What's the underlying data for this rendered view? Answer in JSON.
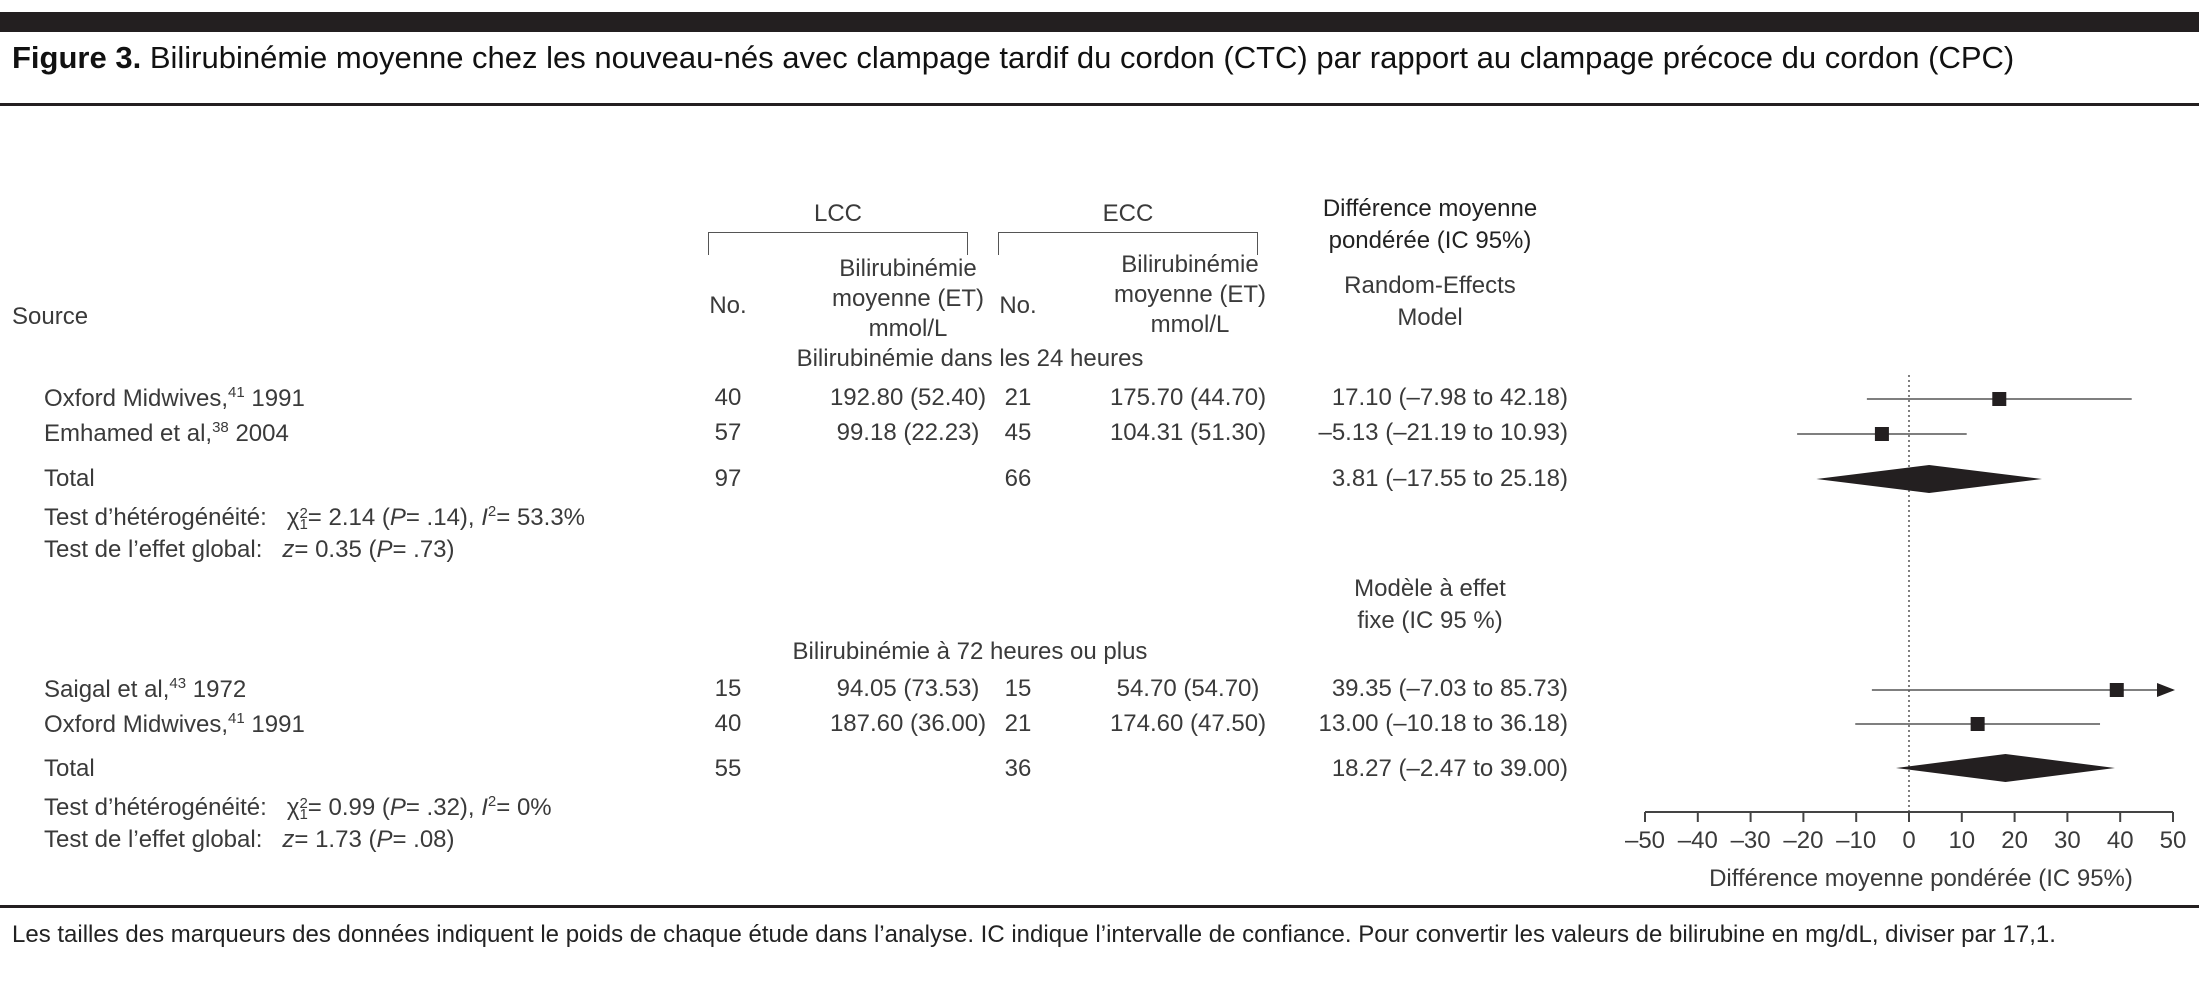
{
  "figure": {
    "label": "Figure 3.",
    "title": "Bilirubinémie moyenne chez les nouveau-nés avec clampage tardif du cordon (CTC) par rapport au clampage précoce du cordon (CPC)",
    "footnote": "Les tailles des marqueurs des données indiquent le poids de chaque étude dans l’analyse. IC indique l’intervalle de confiance. Pour convertir les valeurs de bilirubine en mg/dL, diviser par 17,1."
  },
  "header": {
    "source": "Source",
    "lcc": "LCC",
    "ecc": "ECC",
    "no": "No.",
    "mean_l1": "Bilirubinémie",
    "mean_l2": "moyenne (ET)",
    "mean_l3": "mmol/L",
    "diff_l1": "Différence moyenne",
    "diff_l2": "pondérée (IC 95%)",
    "model1_l1": "Random-Effects",
    "model1_l2": "Model",
    "model2_l1": "Modèle à effet",
    "model2_l2": "fixe (IC 95 %)"
  },
  "groups": [
    {
      "title": "Bilirubinémie dans les 24 heures",
      "studies": [
        {
          "name": "Oxford Midwives,",
          "ref": "41",
          "year": " 1991",
          "lcc_n": "40",
          "lcc_mean": "192.80 (52.40)",
          "ecc_n": "21",
          "ecc_mean": "175.70 (44.70)",
          "ci": "17.10 (–7.98 to 42.18)"
        },
        {
          "name": "Emhamed et al,",
          "ref": "38",
          "year": " 2004",
          "lcc_n": "57",
          "lcc_mean": "99.18 (22.23)",
          "ecc_n": "45",
          "ecc_mean": "104.31 (51.30)",
          "ci": "–5.13 (–21.19 to 10.93)"
        }
      ],
      "total": {
        "label": "Total",
        "lcc_n": "97",
        "ecc_n": "66",
        "ci": "3.81 (–17.55 to 25.18)"
      },
      "heterogeneity": {
        "label": "Test d’hétérogénéité:",
        "chi_sym": "χ",
        "chi_sup": "2",
        "chi_sub": "1",
        "chi_val": "= 2.14 (",
        "p_sym": "P",
        "p_val": "= .14), ",
        "i_sym": "I",
        "i_sup": "2",
        "i_val": "= 53.3%"
      },
      "overall": {
        "label": "Test de l’effet global:",
        "z_sym": "z",
        "z_val": "= 0.35 (",
        "p_sym": "P",
        "p_val": "= .73)"
      }
    },
    {
      "title": "Bilirubinémie à 72 heures ou plus",
      "studies": [
        {
          "name": "Saigal et al,",
          "ref": "43",
          "year": " 1972",
          "lcc_n": "15",
          "lcc_mean": "94.05 (73.53)",
          "ecc_n": "15",
          "ecc_mean": "54.70 (54.70)",
          "ci": "39.35 (–7.03 to 85.73)"
        },
        {
          "name": "Oxford Midwives,",
          "ref": "41",
          "year": " 1991",
          "lcc_n": "40",
          "lcc_mean": "187.60 (36.00)",
          "ecc_n": "21",
          "ecc_mean": "174.60 (47.50)",
          "ci": "13.00 (–10.18 to 36.18)"
        }
      ],
      "total": {
        "label": "Total",
        "lcc_n": "55",
        "ecc_n": "36",
        "ci": "18.27 (–2.47 to 39.00)"
      },
      "heterogeneity": {
        "label": "Test d’hétérogénéité:",
        "chi_sym": "χ",
        "chi_sup": "2",
        "chi_sub": "1",
        "chi_val": "= 0.99 (",
        "p_sym": "P",
        "p_val": "= .32), ",
        "i_sym": "I",
        "i_sup": "2",
        "i_val": "= 0%"
      },
      "overall": {
        "label": "Test de l’effet global:",
        "z_sym": "z",
        "z_val": "= 1.73 (",
        "p_sym": "P",
        "p_val": "= .08)"
      }
    }
  ],
  "chart_data": {
    "type": "forest",
    "xlabel": "Différence moyenne pondérée (IC 95%)",
    "xlim": [
      -50,
      50
    ],
    "ticks": [
      -50,
      -40,
      -30,
      -20,
      -10,
      0,
      10,
      20,
      30,
      40,
      50
    ],
    "tick_labels": [
      "–50",
      "–40",
      "–30",
      "–20",
      "–10",
      "0",
      "10",
      "20",
      "30",
      "40",
      "50"
    ],
    "reference_line": 0,
    "rows": [
      {
        "label": "Oxford Midwives, 1991",
        "kind": "study",
        "estimate": 17.1,
        "lower": -7.98,
        "upper": 42.18,
        "marker_weight": 1.0
      },
      {
        "label": "Emhamed et al, 2004",
        "kind": "study",
        "estimate": -5.13,
        "lower": -21.19,
        "upper": 10.93,
        "marker_weight": 1.0
      },
      {
        "label": "Total (Random-Effects)",
        "kind": "pooled",
        "estimate": 3.81,
        "lower": -17.55,
        "upper": 25.18
      },
      {
        "label": "Saigal et al, 1972",
        "kind": "study",
        "estimate": 39.35,
        "lower": -7.03,
        "upper": 85.73,
        "marker_weight": 1.0,
        "clipped_upper": true
      },
      {
        "label": "Oxford Midwives, 1991",
        "kind": "study",
        "estimate": 13.0,
        "lower": -10.18,
        "upper": 36.18,
        "marker_weight": 1.0
      },
      {
        "label": "Total (Fixed-Effect)",
        "kind": "pooled",
        "estimate": 18.27,
        "lower": -2.47,
        "upper": 39.0
      }
    ]
  }
}
